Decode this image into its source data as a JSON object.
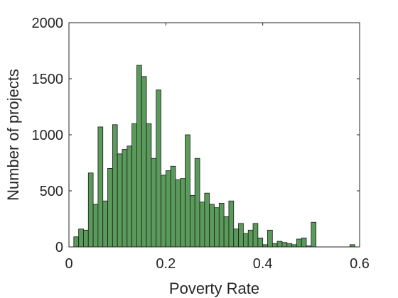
{
  "chart_data": {
    "type": "bar",
    "subtype": "histogram",
    "title": "",
    "xlabel": "Poverty Rate",
    "ylabel": "Number of projects",
    "xlim": [
      0,
      0.6
    ],
    "ylim": [
      0,
      2000
    ],
    "xticks": [
      0,
      0.2,
      0.4,
      0.6
    ],
    "xtick_labels": [
      "0",
      "0.2",
      "0.4",
      "0.6"
    ],
    "yticks": [
      0,
      500,
      1000,
      1500,
      2000
    ],
    "ytick_labels": [
      "0",
      "500",
      "1000",
      "1500",
      "2000"
    ],
    "grid": false,
    "box": true,
    "bar_color": "#5a9a5a",
    "edge_color": "#1a1a1a",
    "bin_width": 0.01,
    "bin_edges_start": 0.01,
    "values": [
      90,
      160,
      150,
      660,
      380,
      1070,
      410,
      700,
      1090,
      830,
      870,
      900,
      1100,
      1620,
      1520,
      1100,
      790,
      1400,
      640,
      680,
      720,
      600,
      610,
      1000,
      460,
      790,
      400,
      480,
      380,
      350,
      390,
      270,
      410,
      160,
      210,
      120,
      150,
      210,
      80,
      20,
      150,
      30,
      50,
      40,
      30,
      20,
      70,
      80,
      10,
      220,
      0,
      0,
      0,
      0,
      0,
      0,
      0,
      20
    ]
  }
}
